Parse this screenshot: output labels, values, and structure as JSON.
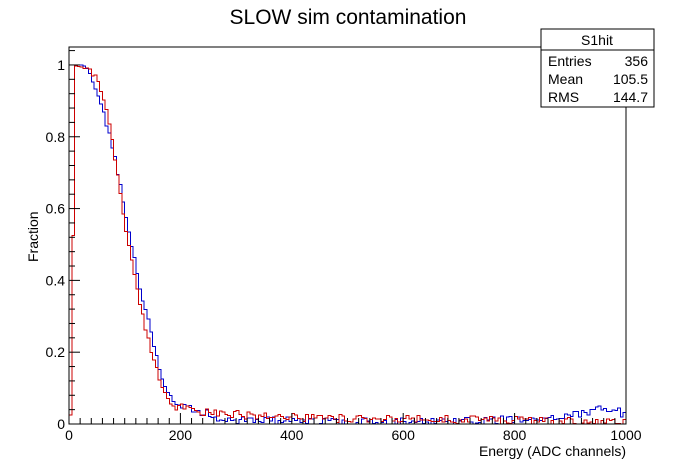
{
  "chart_data": {
    "type": "step-histogram",
    "title": "SLOW sim contamination",
    "xlabel": "Energy (ADC channels)",
    "ylabel": "Fraction",
    "xlim": [
      0,
      1000
    ],
    "ylim": [
      0,
      1.05
    ],
    "x_ticks": [
      "0",
      "200",
      "400",
      "600",
      "800",
      "1000"
    ],
    "y_ticks": [
      "0",
      "0.2",
      "0.4",
      "0.6",
      "0.8",
      "1"
    ],
    "grid": false,
    "bin_width": 5,
    "stats_box": {
      "title": "S1hit",
      "rows": [
        {
          "label": "Entries",
          "value": "356"
        },
        {
          "label": "Mean",
          "value": "105.5"
        },
        {
          "label": "RMS",
          "value": "144.7"
        }
      ]
    },
    "series": [
      {
        "color": "#0000cc",
        "points": [
          [
            0,
            0.0
          ],
          [
            5,
            0.05
          ],
          [
            10,
            1.0
          ],
          [
            20,
            1.0
          ],
          [
            30,
            0.99
          ],
          [
            40,
            0.97
          ],
          [
            50,
            0.92
          ],
          [
            60,
            0.88
          ],
          [
            70,
            0.82
          ],
          [
            80,
            0.76
          ],
          [
            90,
            0.68
          ],
          [
            100,
            0.6
          ],
          [
            110,
            0.52
          ],
          [
            120,
            0.44
          ],
          [
            130,
            0.36
          ],
          [
            140,
            0.3
          ],
          [
            150,
            0.24
          ],
          [
            160,
            0.17
          ],
          [
            170,
            0.11
          ],
          [
            180,
            0.08
          ],
          [
            190,
            0.06
          ],
          [
            200,
            0.05
          ],
          [
            220,
            0.04
          ],
          [
            240,
            0.03
          ],
          [
            260,
            0.02
          ],
          [
            280,
            0.015
          ],
          [
            300,
            0.012
          ],
          [
            350,
            0.008
          ],
          [
            400,
            0.006
          ],
          [
            450,
            0.004
          ],
          [
            500,
            0.004
          ],
          [
            600,
            0.004
          ],
          [
            700,
            0.005
          ],
          [
            800,
            0.01
          ],
          [
            850,
            0.012
          ],
          [
            900,
            0.02
          ],
          [
            930,
            0.035
          ],
          [
            950,
            0.045
          ],
          [
            970,
            0.04
          ],
          [
            990,
            0.03
          ],
          [
            1000,
            0.03
          ]
        ]
      },
      {
        "color": "#cc0000",
        "points": [
          [
            0,
            0.0
          ],
          [
            5,
            0.05
          ],
          [
            10,
            1.0
          ],
          [
            20,
            0.99
          ],
          [
            30,
            0.99
          ],
          [
            40,
            0.98
          ],
          [
            50,
            0.96
          ],
          [
            60,
            0.92
          ],
          [
            70,
            0.86
          ],
          [
            80,
            0.76
          ],
          [
            90,
            0.66
          ],
          [
            100,
            0.56
          ],
          [
            110,
            0.48
          ],
          [
            120,
            0.4
          ],
          [
            130,
            0.32
          ],
          [
            140,
            0.25
          ],
          [
            150,
            0.19
          ],
          [
            160,
            0.14
          ],
          [
            170,
            0.09
          ],
          [
            180,
            0.06
          ],
          [
            190,
            0.05
          ],
          [
            200,
            0.045
          ],
          [
            220,
            0.035
          ],
          [
            240,
            0.03
          ],
          [
            260,
            0.03
          ],
          [
            280,
            0.025
          ],
          [
            300,
            0.025
          ],
          [
            350,
            0.02
          ],
          [
            400,
            0.02
          ],
          [
            450,
            0.015
          ],
          [
            500,
            0.015
          ],
          [
            550,
            0.012
          ],
          [
            600,
            0.012
          ],
          [
            650,
            0.012
          ],
          [
            700,
            0.01
          ],
          [
            750,
            0.01
          ],
          [
            800,
            0.01
          ],
          [
            850,
            0.006
          ],
          [
            900,
            0.006
          ],
          [
            950,
            0.005
          ],
          [
            1000,
            0.004
          ]
        ]
      }
    ]
  }
}
